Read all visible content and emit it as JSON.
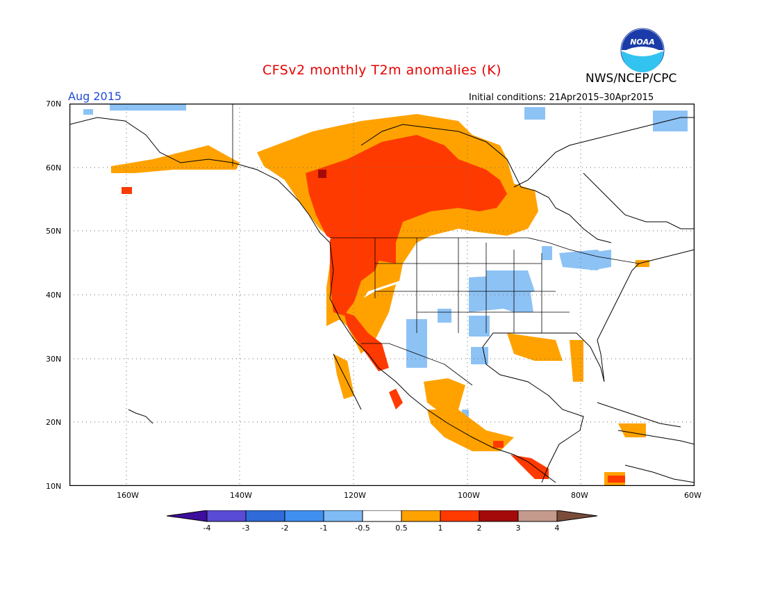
{
  "header": {
    "title": "CFSv2 monthly T2m anomalies (K)",
    "agency": "NWS/NCEP/CPC",
    "logo_text": "NOAA",
    "valid_month": "Aug 2015",
    "initial_conditions": "Initial conditions: 21Apr2015–30Apr2015"
  },
  "axes": {
    "latitude_labels": [
      "70N",
      "60N",
      "50N",
      "40N",
      "30N",
      "20N",
      "10N"
    ],
    "longitude_labels": [
      "160W",
      "140W",
      "120W",
      "100W",
      "80W",
      "60W"
    ]
  },
  "legend": {
    "labels": [
      "-4",
      "-3",
      "-2",
      "-1",
      "-0.5",
      "0.5",
      "1",
      "2",
      "3",
      "4"
    ],
    "colors": [
      "#3e0e9c",
      "#5a4bd4",
      "#2f6bd9",
      "#3f8ff0",
      "#7fbbf5",
      "#ffffff",
      "#ffa200",
      "#ff3a00",
      "#a50a0a",
      "#c49a8c",
      "#7a4b3a"
    ]
  },
  "map": {
    "projection": "lat-lon",
    "lon_range": [
      -170,
      -60
    ],
    "lat_range": [
      10,
      70
    ],
    "gridlines": "dotted",
    "region": "North America"
  }
}
